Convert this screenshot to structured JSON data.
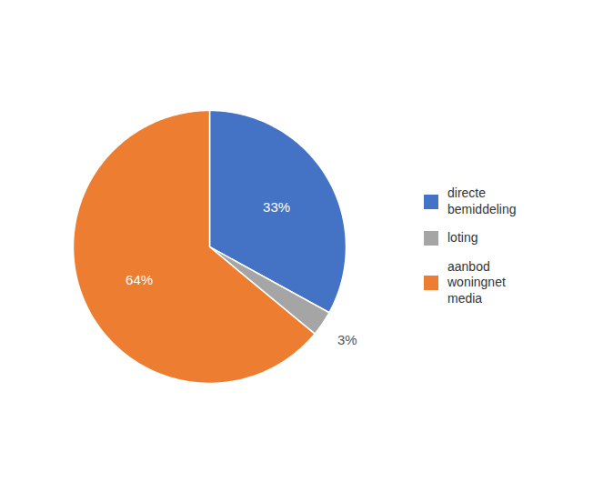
{
  "chart_data": {
    "type": "pie",
    "categories": [
      "directe\nbemiddeling",
      "loting",
      "aanbod\nwoningnet\nmedia"
    ],
    "values": [
      33,
      3,
      64
    ],
    "value_labels": [
      "33%",
      "3%",
      "64%"
    ],
    "colors": [
      "#4472C4",
      "#A5A5A5",
      "#ED7D31"
    ],
    "data_labels": true,
    "legend": "right"
  }
}
